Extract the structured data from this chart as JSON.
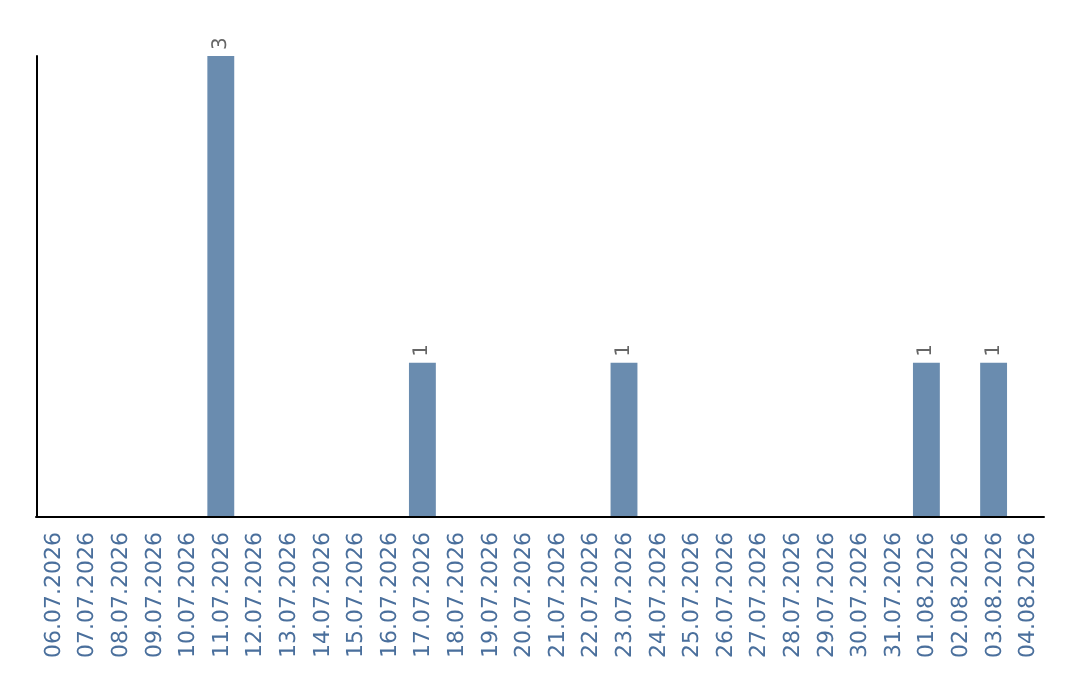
{
  "chart_data": {
    "type": "bar",
    "categories": [
      "06.07.2026",
      "07.07.2026",
      "08.07.2026",
      "09.07.2026",
      "10.07.2026",
      "11.07.2026",
      "12.07.2026",
      "13.07.2026",
      "14.07.2026",
      "15.07.2026",
      "16.07.2026",
      "17.07.2026",
      "18.07.2026",
      "19.07.2026",
      "20.07.2026",
      "21.07.2026",
      "22.07.2026",
      "23.07.2026",
      "24.07.2026",
      "25.07.2026",
      "26.07.2026",
      "27.07.2026",
      "28.07.2026",
      "29.07.2026",
      "30.07.2026",
      "31.07.2026",
      "01.08.2026",
      "02.08.2026",
      "03.08.2026",
      "04.08.2026"
    ],
    "values": [
      0,
      0,
      0,
      0,
      0,
      3,
      0,
      0,
      0,
      0,
      0,
      1,
      0,
      0,
      0,
      0,
      0,
      1,
      0,
      0,
      0,
      0,
      0,
      0,
      0,
      0,
      1,
      0,
      1,
      0
    ],
    "value_labels": [
      null,
      null,
      null,
      null,
      null,
      "3",
      null,
      null,
      null,
      null,
      null,
      "1",
      null,
      null,
      null,
      null,
      null,
      "1",
      null,
      null,
      null,
      null,
      null,
      null,
      null,
      null,
      "1",
      null,
      "1",
      null
    ],
    "color": "#6a8caf",
    "tick_labels": "x"
  }
}
